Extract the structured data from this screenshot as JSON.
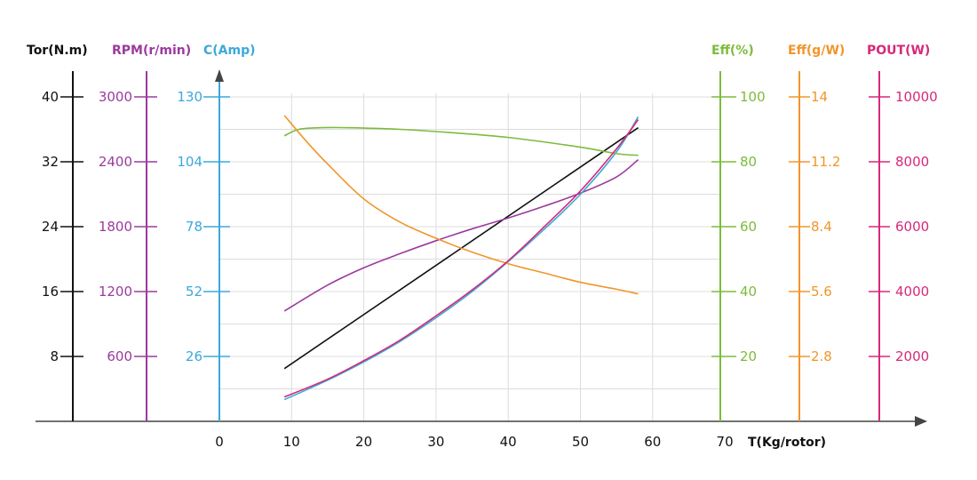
{
  "chart_data": {
    "type": "line",
    "x_axis": {
      "label": "T(Kg/rotor)",
      "ticks": [
        0,
        10,
        20,
        30,
        40,
        50,
        60,
        70
      ],
      "range": [
        0,
        70
      ]
    },
    "axes": [
      {
        "id": "tor",
        "title": "Tor(N.m)",
        "color": "#111111",
        "ticks": [
          8,
          16,
          24,
          32,
          40
        ],
        "tick_labels": [
          "8",
          "16",
          "24",
          "32",
          "40"
        ],
        "range": [
          0,
          40
        ]
      },
      {
        "id": "rpm",
        "title": "RPM(r/min)",
        "color": "#9b3a9e",
        "ticks": [
          600,
          1200,
          1800,
          2400,
          3000
        ],
        "tick_labels": [
          "600",
          "1200",
          "1800",
          "2400",
          "3000"
        ],
        "range": [
          0,
          3000
        ]
      },
      {
        "id": "amp",
        "title": "C(Amp)",
        "color": "#3ba9d9",
        "ticks": [
          26,
          52,
          78,
          104,
          130
        ],
        "tick_labels": [
          "26",
          "52",
          "78",
          "104",
          "130"
        ],
        "range": [
          0,
          130
        ]
      },
      {
        "id": "eff",
        "title": "Eff(%)",
        "color": "#7dbb3c",
        "ticks": [
          20,
          40,
          60,
          80,
          100
        ],
        "tick_labels": [
          "20",
          "40",
          "60",
          "80",
          "100"
        ],
        "range": [
          0,
          100
        ]
      },
      {
        "id": "effgw",
        "title": "Eff(g/W)",
        "color": "#f0962b",
        "ticks": [
          2.8,
          5.6,
          8.4,
          11.2,
          14
        ],
        "tick_labels": [
          "2.8",
          "5.6",
          "8.4",
          "11.2",
          "14"
        ],
        "range": [
          0,
          14
        ]
      },
      {
        "id": "pout",
        "title": "POUT(W)",
        "color": "#d6297a",
        "ticks": [
          2000,
          4000,
          6000,
          8000,
          10000
        ],
        "tick_labels": [
          "2000",
          "4000",
          "6000",
          "8000",
          "10000"
        ],
        "range": [
          0,
          10000
        ]
      }
    ],
    "series": [
      {
        "axis": "tor",
        "color": "#111111",
        "x": [
          9,
          58
        ],
        "y": [
          6.5,
          36.2
        ]
      },
      {
        "axis": "rpm",
        "color": "#9b3a9e",
        "x": [
          9,
          15,
          20,
          25,
          30,
          35,
          40,
          45,
          50,
          55,
          58
        ],
        "y": [
          1020,
          1260,
          1420,
          1550,
          1670,
          1780,
          1880,
          1990,
          2110,
          2260,
          2420
        ]
      },
      {
        "axis": "amp",
        "color": "#3ba9d9",
        "x": [
          9,
          15,
          20,
          25,
          30,
          35,
          40,
          45,
          50,
          55,
          58
        ],
        "y": [
          8.7,
          16.5,
          23.8,
          32,
          41.5,
          52,
          64,
          77,
          91,
          108,
          122
        ]
      },
      {
        "axis": "eff",
        "color": "#7dbb3c",
        "x": [
          9,
          11,
          14,
          18,
          25,
          32,
          40,
          50,
          55,
          58
        ],
        "y": [
          88,
          90,
          90.5,
          90.5,
          90,
          89,
          87.5,
          84.5,
          82.5,
          82
        ]
      },
      {
        "axis": "effgw",
        "color": "#f0962b",
        "x": [
          9,
          12,
          15,
          20,
          25,
          30,
          35,
          40,
          45,
          50,
          55,
          58
        ],
        "y": [
          13.2,
          12.1,
          11.1,
          9.6,
          8.6,
          7.9,
          7.3,
          6.8,
          6.4,
          6.0,
          5.7,
          5.5
        ]
      },
      {
        "axis": "pout",
        "color": "#d6297a",
        "x": [
          9,
          15,
          20,
          25,
          30,
          35,
          40,
          45,
          50,
          55,
          58
        ],
        "y": [
          750,
          1300,
          1870,
          2500,
          3250,
          4050,
          4950,
          6000,
          7100,
          8400,
          9300
        ]
      }
    ],
    "grid": true
  }
}
